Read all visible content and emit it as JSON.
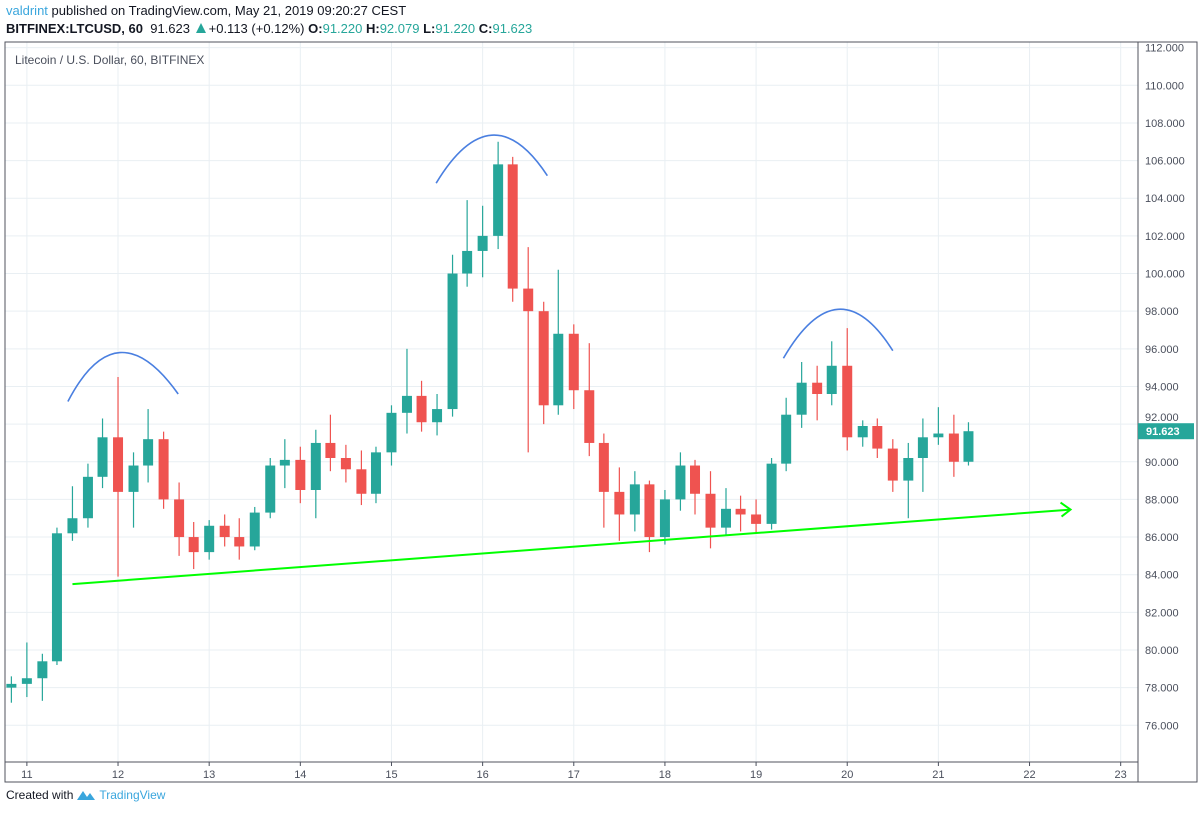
{
  "header": {
    "author": "valdrint",
    "published": "published on TradingView.com, May 21, 2019 09:20:27 CEST",
    "symbol": "BITFINEX:LTCUSD, 60",
    "last": "91.623",
    "change": "+0.113 (+0.12%)",
    "o_label": "O:",
    "o": "91.220",
    "h_label": "H:",
    "h": "92.079",
    "l_label": "L:",
    "l": "91.220",
    "c_label": "C:",
    "c": "91.623"
  },
  "legend": "Litecoin / U.S. Dollar, 60, BITFINEX",
  "footer": {
    "created": "Created with",
    "brand": "TradingView"
  },
  "colors": {
    "up": "#26a69a",
    "down": "#ef5350",
    "trendline": "#00ff00",
    "arc": "#4a7fe0",
    "grid": "#e9eff3"
  },
  "chart_data": {
    "type": "candlestick",
    "xlabel": "",
    "ylabel": "",
    "x_ticks": [
      "11",
      "12",
      "13",
      "14",
      "15",
      "16",
      "17",
      "18",
      "19",
      "20",
      "21",
      "22",
      "23"
    ],
    "y_ticks": [
      "76.000",
      "78.000",
      "80.000",
      "82.000",
      "84.000",
      "86.000",
      "88.000",
      "90.000",
      "92.000",
      "94.000",
      "96.000",
      "98.000",
      "100.000",
      "102.000",
      "104.000",
      "106.000",
      "108.000",
      "110.000",
      "112.000"
    ],
    "xlim": [
      10.76,
      23.19
    ],
    "ylim": [
      74.05,
      112.3
    ],
    "grid": true,
    "last_price_label": "91.623",
    "candles_fields": [
      "day",
      "open",
      "high",
      "low",
      "close"
    ],
    "candles": [
      [
        10.83,
        78.0,
        78.6,
        77.2,
        78.2
      ],
      [
        11.0,
        78.2,
        80.4,
        77.5,
        78.5
      ],
      [
        11.17,
        78.5,
        79.8,
        77.3,
        79.4
      ],
      [
        11.33,
        79.4,
        86.5,
        79.2,
        86.2
      ],
      [
        11.5,
        86.2,
        88.7,
        85.8,
        87.0
      ],
      [
        11.67,
        87.0,
        89.9,
        86.5,
        89.2
      ],
      [
        11.83,
        89.2,
        92.3,
        88.6,
        91.3
      ],
      [
        12.0,
        91.3,
        94.5,
        83.9,
        88.4
      ],
      [
        12.17,
        88.4,
        90.5,
        86.5,
        89.8
      ],
      [
        12.33,
        89.8,
        92.8,
        88.9,
        91.2
      ],
      [
        12.5,
        91.2,
        91.6,
        87.5,
        88.0
      ],
      [
        12.67,
        88.0,
        88.9,
        85.0,
        86.0
      ],
      [
        12.83,
        86.0,
        86.8,
        84.3,
        85.2
      ],
      [
        13.0,
        85.2,
        86.9,
        84.8,
        86.6
      ],
      [
        13.17,
        86.6,
        87.2,
        85.5,
        86.0
      ],
      [
        13.33,
        86.0,
        87.0,
        84.8,
        85.5
      ],
      [
        13.5,
        85.5,
        87.6,
        85.3,
        87.3
      ],
      [
        13.67,
        87.3,
        90.2,
        87.0,
        89.8
      ],
      [
        13.83,
        89.8,
        91.2,
        88.6,
        90.1
      ],
      [
        14.0,
        90.1,
        90.8,
        87.8,
        88.5
      ],
      [
        14.17,
        88.5,
        91.7,
        87.0,
        91.0
      ],
      [
        14.33,
        91.0,
        92.5,
        89.5,
        90.2
      ],
      [
        14.5,
        90.2,
        90.9,
        88.9,
        89.6
      ],
      [
        14.67,
        89.6,
        90.6,
        87.7,
        88.3
      ],
      [
        14.83,
        88.3,
        90.8,
        87.8,
        90.5
      ],
      [
        15.0,
        90.5,
        93.0,
        89.8,
        92.6
      ],
      [
        15.17,
        92.6,
        96.0,
        91.5,
        93.5
      ],
      [
        15.33,
        93.5,
        94.3,
        91.6,
        92.1
      ],
      [
        15.5,
        92.1,
        93.6,
        91.4,
        92.8
      ],
      [
        15.67,
        92.8,
        101.0,
        92.4,
        100.0
      ],
      [
        15.83,
        100.0,
        103.9,
        99.3,
        101.2
      ],
      [
        16.0,
        101.2,
        103.6,
        99.8,
        102.0
      ],
      [
        16.17,
        102.0,
        107.0,
        101.3,
        105.8
      ],
      [
        16.33,
        105.8,
        106.2,
        98.5,
        99.2
      ],
      [
        16.5,
        99.2,
        101.4,
        90.5,
        98.0
      ],
      [
        16.67,
        98.0,
        98.5,
        92.0,
        93.0
      ],
      [
        16.83,
        93.0,
        100.2,
        92.5,
        96.8
      ],
      [
        17.0,
        96.8,
        97.3,
        92.8,
        93.8
      ],
      [
        17.17,
        93.8,
        96.3,
        90.3,
        91.0
      ],
      [
        17.33,
        91.0,
        91.5,
        86.5,
        88.4
      ],
      [
        17.5,
        88.4,
        89.7,
        85.8,
        87.2
      ],
      [
        17.67,
        87.2,
        89.5,
        86.3,
        88.8
      ],
      [
        17.83,
        88.8,
        89.0,
        85.2,
        86.0
      ],
      [
        18.0,
        86.0,
        88.5,
        85.6,
        88.0
      ],
      [
        18.17,
        88.0,
        90.5,
        87.4,
        89.8
      ],
      [
        18.33,
        89.8,
        90.1,
        87.2,
        88.3
      ],
      [
        18.5,
        88.3,
        89.5,
        85.4,
        86.5
      ],
      [
        18.67,
        86.5,
        88.6,
        86.1,
        87.5
      ],
      [
        18.83,
        87.5,
        88.2,
        86.3,
        87.2
      ],
      [
        19.0,
        87.2,
        88.0,
        86.2,
        86.7
      ],
      [
        19.17,
        86.7,
        90.2,
        86.4,
        89.9
      ],
      [
        19.33,
        89.9,
        93.4,
        89.5,
        92.5
      ],
      [
        19.5,
        92.5,
        95.3,
        91.8,
        94.2
      ],
      [
        19.67,
        94.2,
        95.1,
        92.2,
        93.6
      ],
      [
        19.83,
        93.6,
        96.4,
        93.0,
        95.1
      ],
      [
        20.0,
        95.1,
        97.1,
        90.6,
        91.3
      ],
      [
        20.17,
        91.3,
        92.2,
        90.8,
        91.9
      ],
      [
        20.33,
        91.9,
        92.3,
        90.2,
        90.7
      ],
      [
        20.5,
        90.7,
        91.2,
        88.4,
        89.0
      ],
      [
        20.67,
        89.0,
        91.0,
        87.0,
        90.2
      ],
      [
        20.83,
        90.2,
        92.3,
        88.4,
        91.3
      ],
      [
        21.0,
        91.3,
        92.9,
        90.9,
        91.5
      ],
      [
        21.17,
        91.5,
        92.5,
        89.2,
        90.0
      ],
      [
        21.33,
        90.0,
        92.1,
        89.8,
        91.623
      ]
    ],
    "annotations": {
      "trendline": {
        "from": [
          11.5,
          83.5
        ],
        "to": [
          22.45,
          87.46
        ],
        "arrow": true
      },
      "arcs": [
        [
          [
            11.45,
            93.2
          ],
          [
            12.02,
            95.8
          ],
          [
            12.66,
            93.6
          ]
        ],
        [
          [
            15.49,
            104.8
          ],
          [
            16.1,
            107.35
          ],
          [
            16.71,
            105.2
          ]
        ],
        [
          [
            19.3,
            95.5
          ],
          [
            19.9,
            98.1
          ],
          [
            20.5,
            95.9
          ]
        ]
      ]
    }
  }
}
